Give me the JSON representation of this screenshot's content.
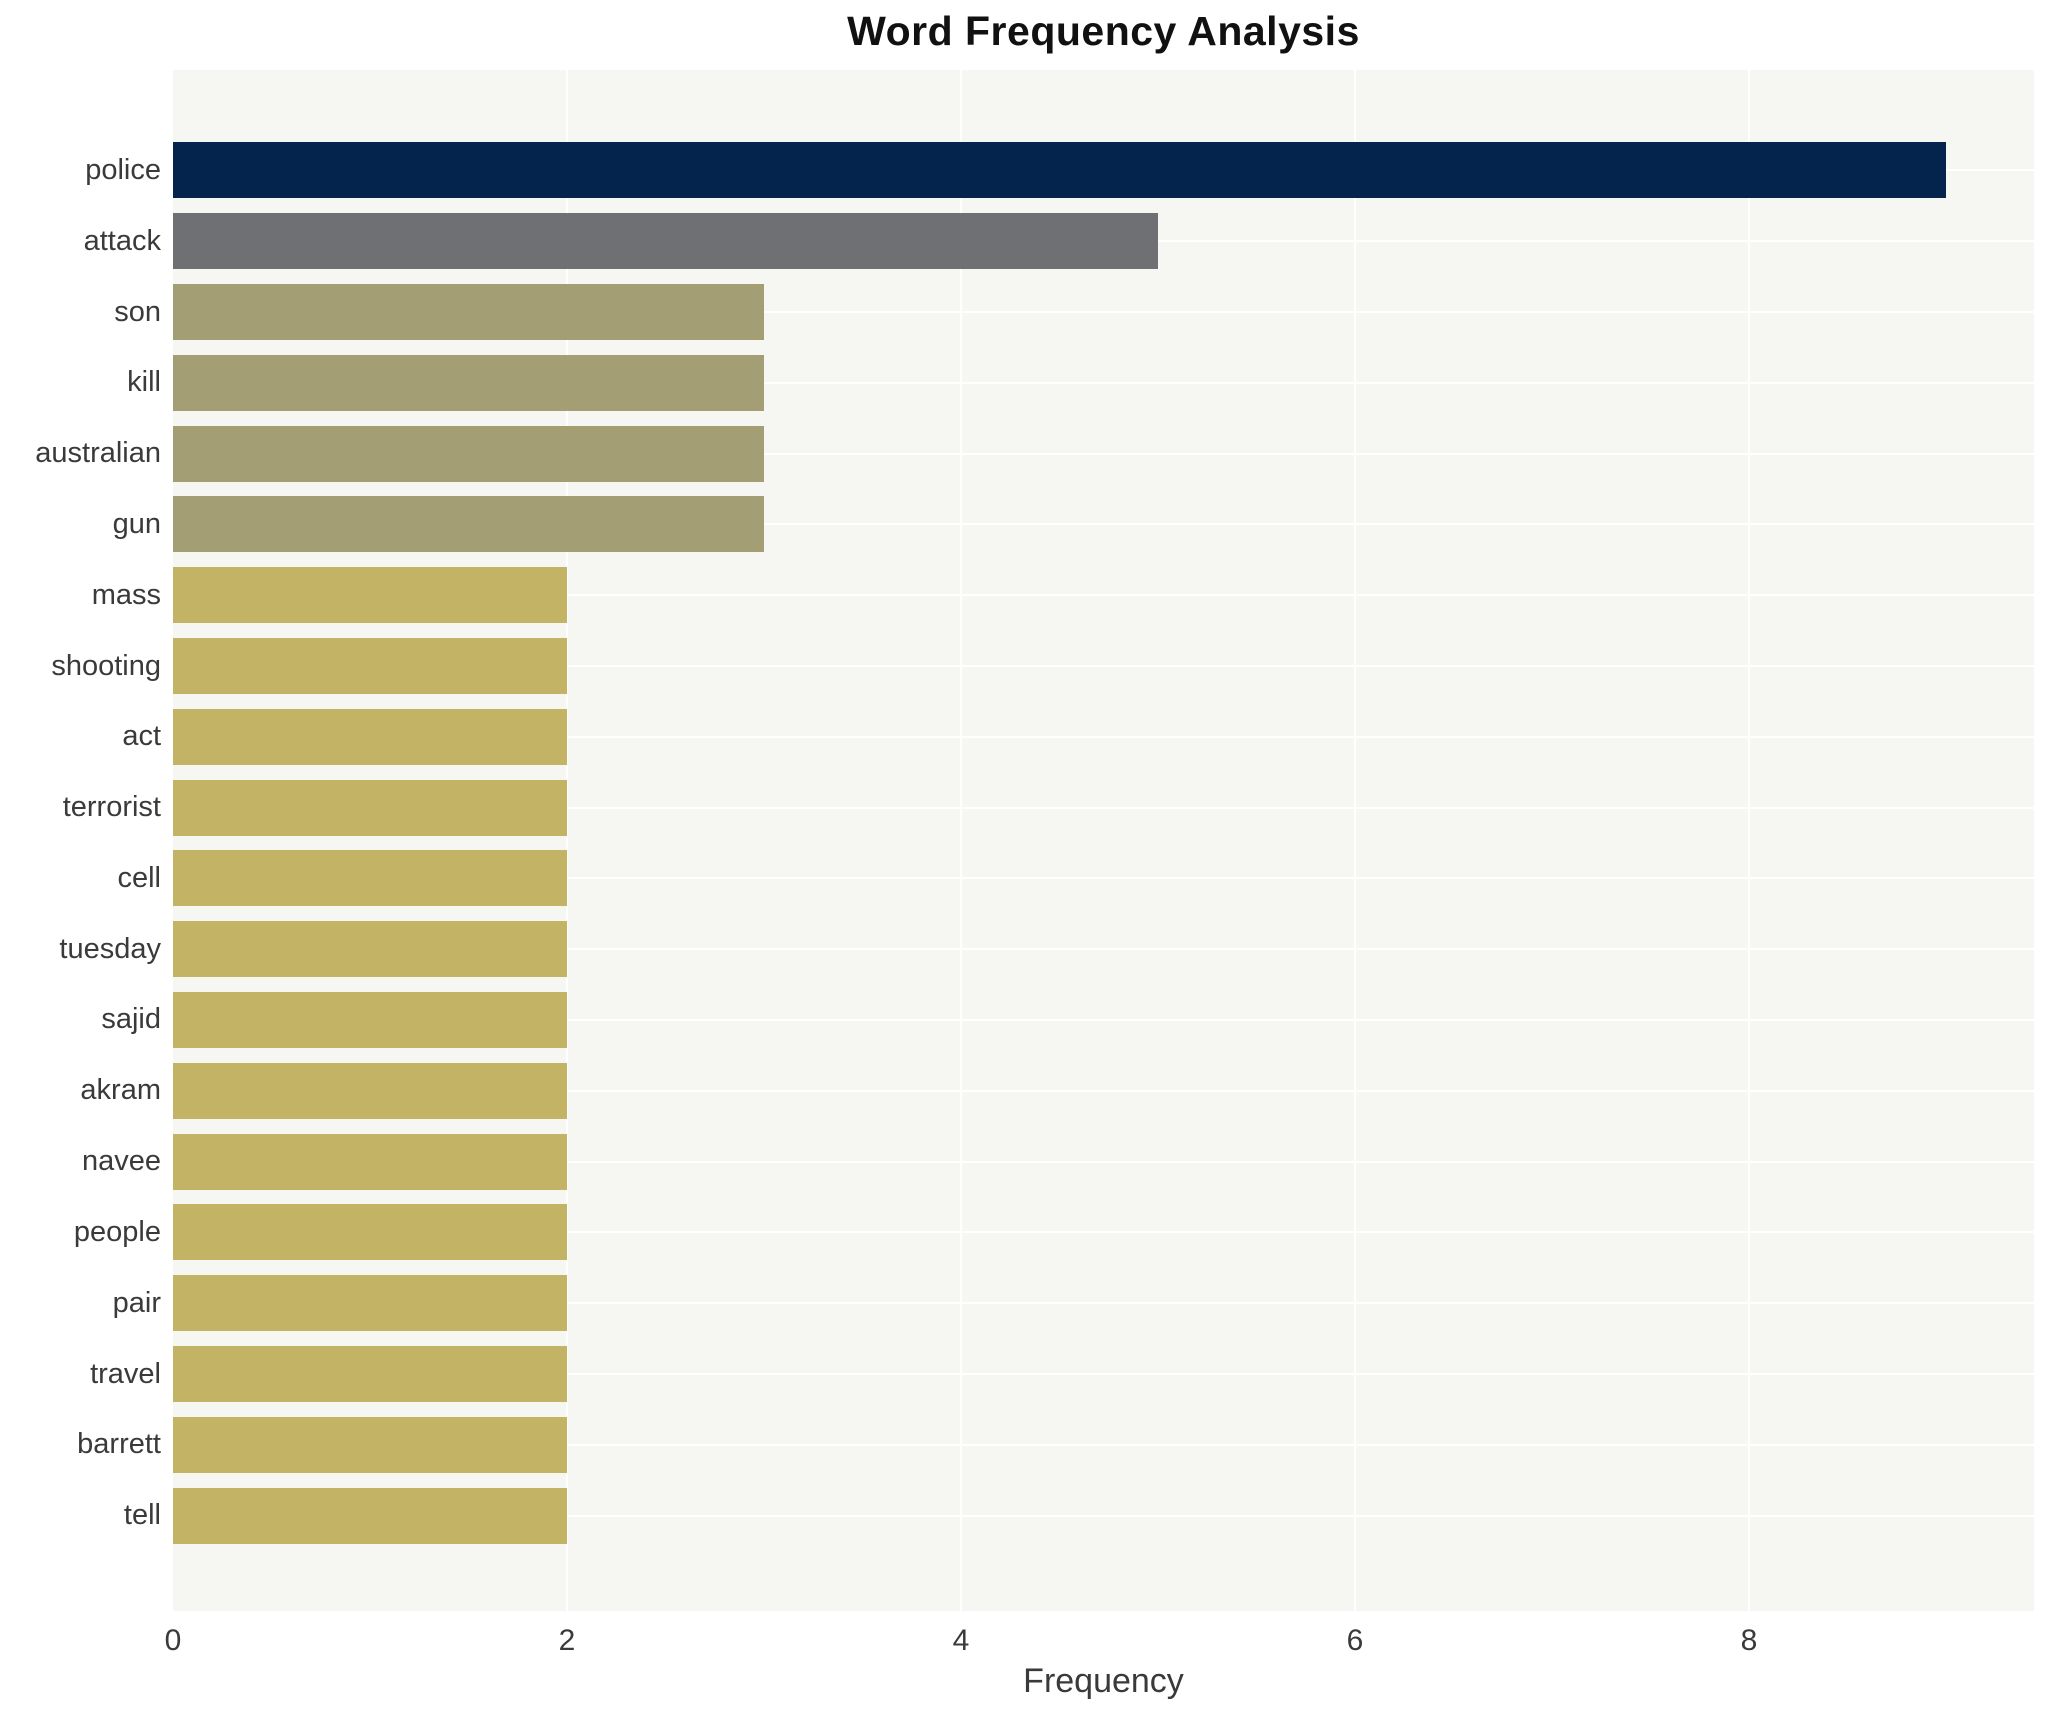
{
  "chart_data": {
    "type": "bar",
    "orientation": "horizontal",
    "title": "Word Frequency Analysis",
    "xlabel": "Frequency",
    "ylabel": "",
    "categories": [
      "police",
      "attack",
      "son",
      "kill",
      "australian",
      "gun",
      "mass",
      "shooting",
      "act",
      "terrorist",
      "cell",
      "tuesday",
      "sajid",
      "akram",
      "navee",
      "people",
      "pair",
      "travel",
      "barrett",
      "tell"
    ],
    "values": [
      9,
      5,
      3,
      3,
      3,
      3,
      2,
      2,
      2,
      2,
      2,
      2,
      2,
      2,
      2,
      2,
      2,
      2,
      2,
      2
    ],
    "bar_colors": [
      "#04234d",
      "#6f7073",
      "#a39e74",
      "#a39e74",
      "#a39e74",
      "#a39e74",
      "#c3b365",
      "#c3b365",
      "#c3b365",
      "#c3b365",
      "#c3b365",
      "#c3b365",
      "#c3b365",
      "#c3b365",
      "#c3b365",
      "#c3b365",
      "#c3b365",
      "#c3b365",
      "#c3b365",
      "#c3b365"
    ],
    "xticks": [
      0,
      2,
      4,
      6,
      8
    ],
    "xlim": [
      0,
      9.45
    ],
    "grid": "on",
    "legend": "none",
    "plot_background": "#f6f6f3",
    "gridline_color": "#ffffff",
    "text_color": "#3a3a3a",
    "title_color": "#111111"
  }
}
